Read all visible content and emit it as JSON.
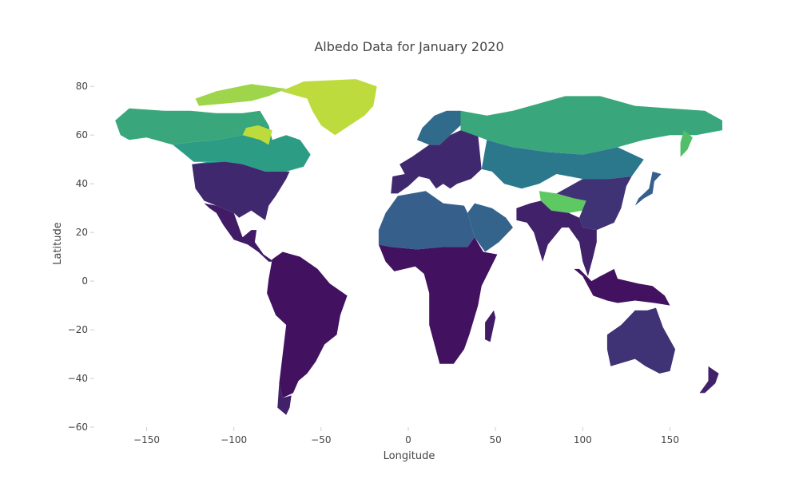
{
  "chart_data": {
    "type": "heatmap",
    "title": "Albedo Data for January 2020",
    "xlabel": "Longitude",
    "ylabel": "Latitude",
    "xlim": [
      -180,
      180
    ],
    "ylim": [
      -60,
      85
    ],
    "x_ticks": [
      -150,
      -100,
      -50,
      0,
      50,
      100,
      150
    ],
    "x_tick_labels": [
      "−150",
      "−100",
      "−50",
      "0",
      "50",
      "100",
      "150"
    ],
    "y_ticks": [
      -60,
      -40,
      -20,
      0,
      20,
      40,
      60,
      80
    ],
    "y_tick_labels": [
      "−60",
      "−40",
      "−20",
      "0",
      "20",
      "40",
      "60",
      "80"
    ],
    "grid": false,
    "colorscale": "viridis",
    "colorscale_colors": [
      "#440154",
      "#3b528b",
      "#21918c",
      "#5ec962",
      "#fde725"
    ],
    "description_values": "approximate albedo level (0 = low/dark purple, 1 = high/yellow) by land region",
    "regions": [
      {
        "name": "North America (north)",
        "level": 0.55
      },
      {
        "name": "Alaska / Canada Arctic",
        "level": 0.6
      },
      {
        "name": "Greenland",
        "level": 0.9
      },
      {
        "name": "Arctic islands",
        "level": 0.85
      },
      {
        "name": "Hudson Bay area",
        "level": 0.9
      },
      {
        "name": "Rockies / Western NA",
        "level": 0.5
      },
      {
        "name": "United States",
        "level": 0.12
      },
      {
        "name": "Mexico / Central America",
        "level": 0.08
      },
      {
        "name": "South America",
        "level": 0.05
      },
      {
        "name": "Patagonia",
        "level": 0.1
      },
      {
        "name": "Scandinavia",
        "level": 0.35
      },
      {
        "name": "Europe",
        "level": 0.12
      },
      {
        "name": "Northern Russia / Siberia",
        "level": 0.6
      },
      {
        "name": "Central Asia",
        "level": 0.4
      },
      {
        "name": "Tibet / Himalaya",
        "level": 0.75
      },
      {
        "name": "China",
        "level": 0.15
      },
      {
        "name": "India / SE Asia",
        "level": 0.1
      },
      {
        "name": "Sahara / North Africa",
        "level": 0.3
      },
      {
        "name": "Arabian Peninsula",
        "level": 0.32
      },
      {
        "name": "Central & Southern Africa",
        "level": 0.05
      },
      {
        "name": "Madagascar",
        "level": 0.08
      },
      {
        "name": "Indonesia / New Guinea",
        "level": 0.05
      },
      {
        "name": "Australia",
        "level": 0.15
      },
      {
        "name": "New Zealand",
        "level": 0.1
      },
      {
        "name": "Japan",
        "level": 0.3
      },
      {
        "name": "Kamchatka",
        "level": 0.7
      }
    ]
  }
}
